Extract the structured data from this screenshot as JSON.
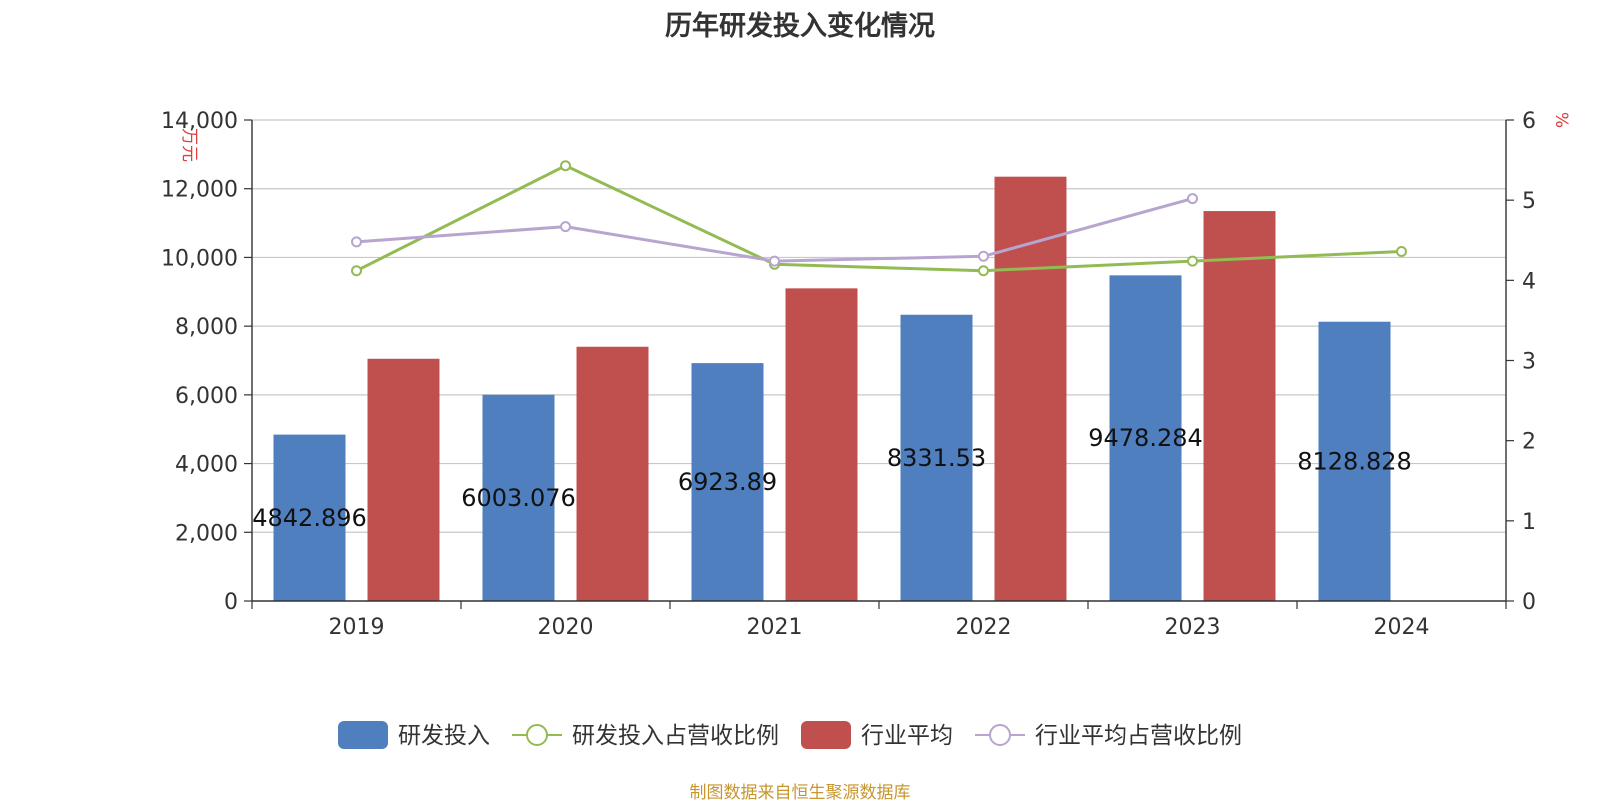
{
  "chart_data": {
    "type": "bar",
    "title": "历年研发投入变化情况",
    "categories": [
      "2019",
      "2020",
      "2021",
      "2022",
      "2023",
      "2024"
    ],
    "y_left": {
      "unit": "万元",
      "ylim": [
        0,
        14000
      ],
      "ticks": [
        0,
        2000,
        4000,
        6000,
        8000,
        10000,
        12000,
        14000
      ],
      "tick_labels": [
        "0",
        "2,000",
        "4,000",
        "6,000",
        "8,000",
        "10,000",
        "12,000",
        "14,000"
      ]
    },
    "y_right": {
      "unit": "%",
      "ylim": [
        0,
        6
      ],
      "ticks": [
        0,
        1,
        2,
        3,
        4,
        5,
        6
      ],
      "tick_labels": [
        "0",
        "1",
        "2",
        "3",
        "4",
        "5",
        "6"
      ]
    },
    "series": [
      {
        "name": "研发投入",
        "kind": "bar",
        "axis": "left",
        "color": "#4f7fbf",
        "values": [
          4842.896,
          6003.076,
          6923.89,
          8331.53,
          9478.284,
          8128.828
        ],
        "data_labels": [
          "4842.896",
          "6003.076",
          "6923.89",
          "8331.53",
          "9478.284",
          "8128.828"
        ]
      },
      {
        "name": "研发投入占营收比例",
        "kind": "line",
        "axis": "right",
        "color": "#93bb54",
        "values": [
          4.12,
          5.43,
          4.2,
          4.12,
          4.24,
          4.36
        ]
      },
      {
        "name": "行业平均",
        "kind": "bar",
        "axis": "left",
        "color": "#c0504d",
        "values": [
          7050,
          7400,
          9100,
          12350,
          11350,
          null
        ]
      },
      {
        "name": "行业平均占营收比例",
        "kind": "line",
        "axis": "right",
        "color": "#b7a5cf",
        "values": [
          4.48,
          4.67,
          4.24,
          4.3,
          5.02,
          null
        ]
      }
    ],
    "legend_position": "bottom",
    "grid": true
  },
  "source_text": "制图数据来自恒生聚源数据库"
}
